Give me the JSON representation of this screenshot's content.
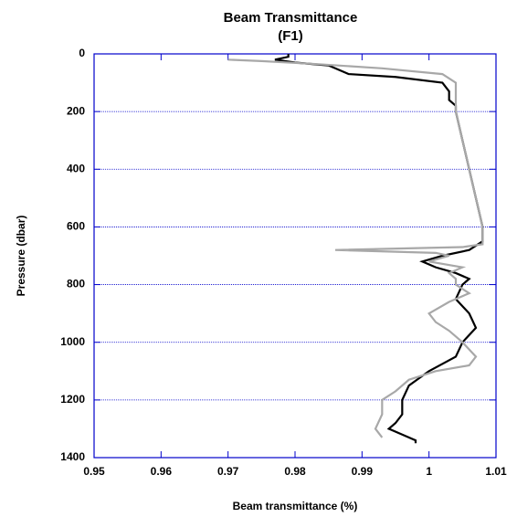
{
  "chart_data": {
    "type": "line",
    "title": "Beam  Transmittance",
    "subtitle": "(F1)",
    "x_label": "Beam transmittance (%)",
    "y_label": "Pressure (dbar)",
    "xlim": [
      0.95,
      1.01
    ],
    "xticks": [
      0.95,
      0.96,
      0.97,
      0.98,
      0.99,
      1,
      1.01
    ],
    "ylim": [
      0,
      1400
    ],
    "yticks": [
      0,
      200,
      400,
      600,
      800,
      1000,
      1200,
      1400
    ],
    "y_inverted": true,
    "grid": true,
    "grid_color": "#0000cc",
    "axis_color": "#0000cc",
    "series": [
      {
        "color": "#000000",
        "x": [
          0.979,
          0.979,
          0.977,
          0.98,
          0.985,
          0.986,
          0.988,
          0.995,
          1.002,
          1.003,
          1.003,
          1.004,
          1.004,
          1.005,
          1.006,
          1.007,
          1.008,
          1.008,
          1.006,
          1.002,
          0.999,
          1.001,
          1.004,
          1.006,
          1.005,
          1.004,
          1.006,
          1.007,
          1.005,
          1.004,
          1.0,
          0.997,
          0.996,
          0.996,
          0.995,
          0.994,
          0.996,
          0.998,
          0.998
        ],
        "y": [
          0,
          10,
          20,
          30,
          40,
          50,
          70,
          80,
          100,
          130,
          160,
          180,
          200,
          300,
          400,
          500,
          600,
          650,
          680,
          700,
          720,
          740,
          760,
          780,
          800,
          850,
          900,
          950,
          1000,
          1050,
          1100,
          1150,
          1200,
          1250,
          1280,
          1300,
          1320,
          1340,
          1350
        ]
      },
      {
        "color": "#a8a8a8",
        "x": [
          0.97,
          0.975,
          0.983,
          0.993,
          1.002,
          1.004,
          1.004,
          1.005,
          1.006,
          1.007,
          1.008,
          1.008,
          1.005,
          0.986,
          1.001,
          1.003,
          1.0,
          1.005,
          1.003,
          1.004,
          1.004,
          1.006,
          1.003,
          1.0,
          1.001,
          1.003,
          1.005,
          1.007,
          1.006,
          1.001,
          0.997,
          0.995,
          0.993,
          0.993,
          0.992,
          0.993
        ],
        "y": [
          20,
          25,
          35,
          50,
          70,
          100,
          200,
          300,
          400,
          500,
          600,
          660,
          670,
          680,
          690,
          700,
          720,
          740,
          760,
          780,
          800,
          830,
          860,
          900,
          930,
          960,
          1000,
          1050,
          1080,
          1100,
          1130,
          1170,
          1200,
          1250,
          1300,
          1330
        ]
      }
    ]
  }
}
